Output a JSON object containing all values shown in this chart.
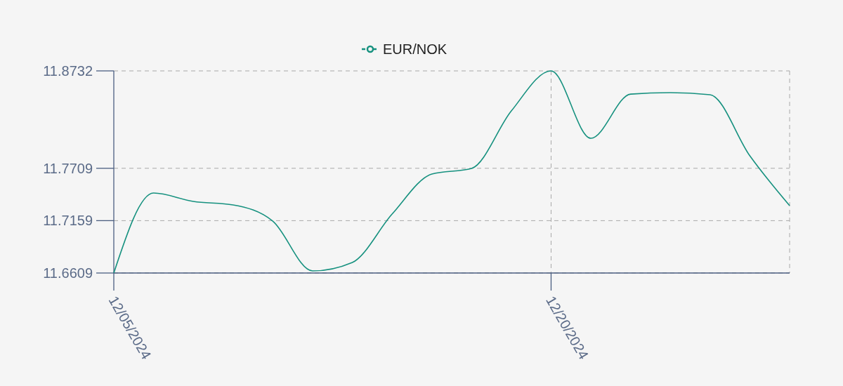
{
  "chart_data": {
    "type": "line",
    "categories": [
      "12/05/2024",
      null,
      null,
      null,
      null,
      null,
      null,
      null,
      null,
      null,
      null,
      "12/20/2024",
      null,
      null,
      null,
      null,
      null,
      null
    ],
    "series": [
      {
        "name": "EUR/NOK",
        "color": "#16917f",
        "values": [
          11.6609,
          11.7449,
          11.7361,
          11.7324,
          11.7154,
          11.6631,
          11.672,
          11.7228,
          11.7648,
          11.7707,
          11.8311,
          11.8732,
          11.8024,
          11.8488,
          11.8503,
          11.8481,
          11.784,
          11.7317
        ]
      }
    ],
    "ylim": [
      11.6609,
      11.8732
    ],
    "yticks": [
      11.6609,
      11.7159,
      11.7709,
      11.8732
    ],
    "grid": true,
    "legend": "top",
    "line_style": "solid"
  }
}
